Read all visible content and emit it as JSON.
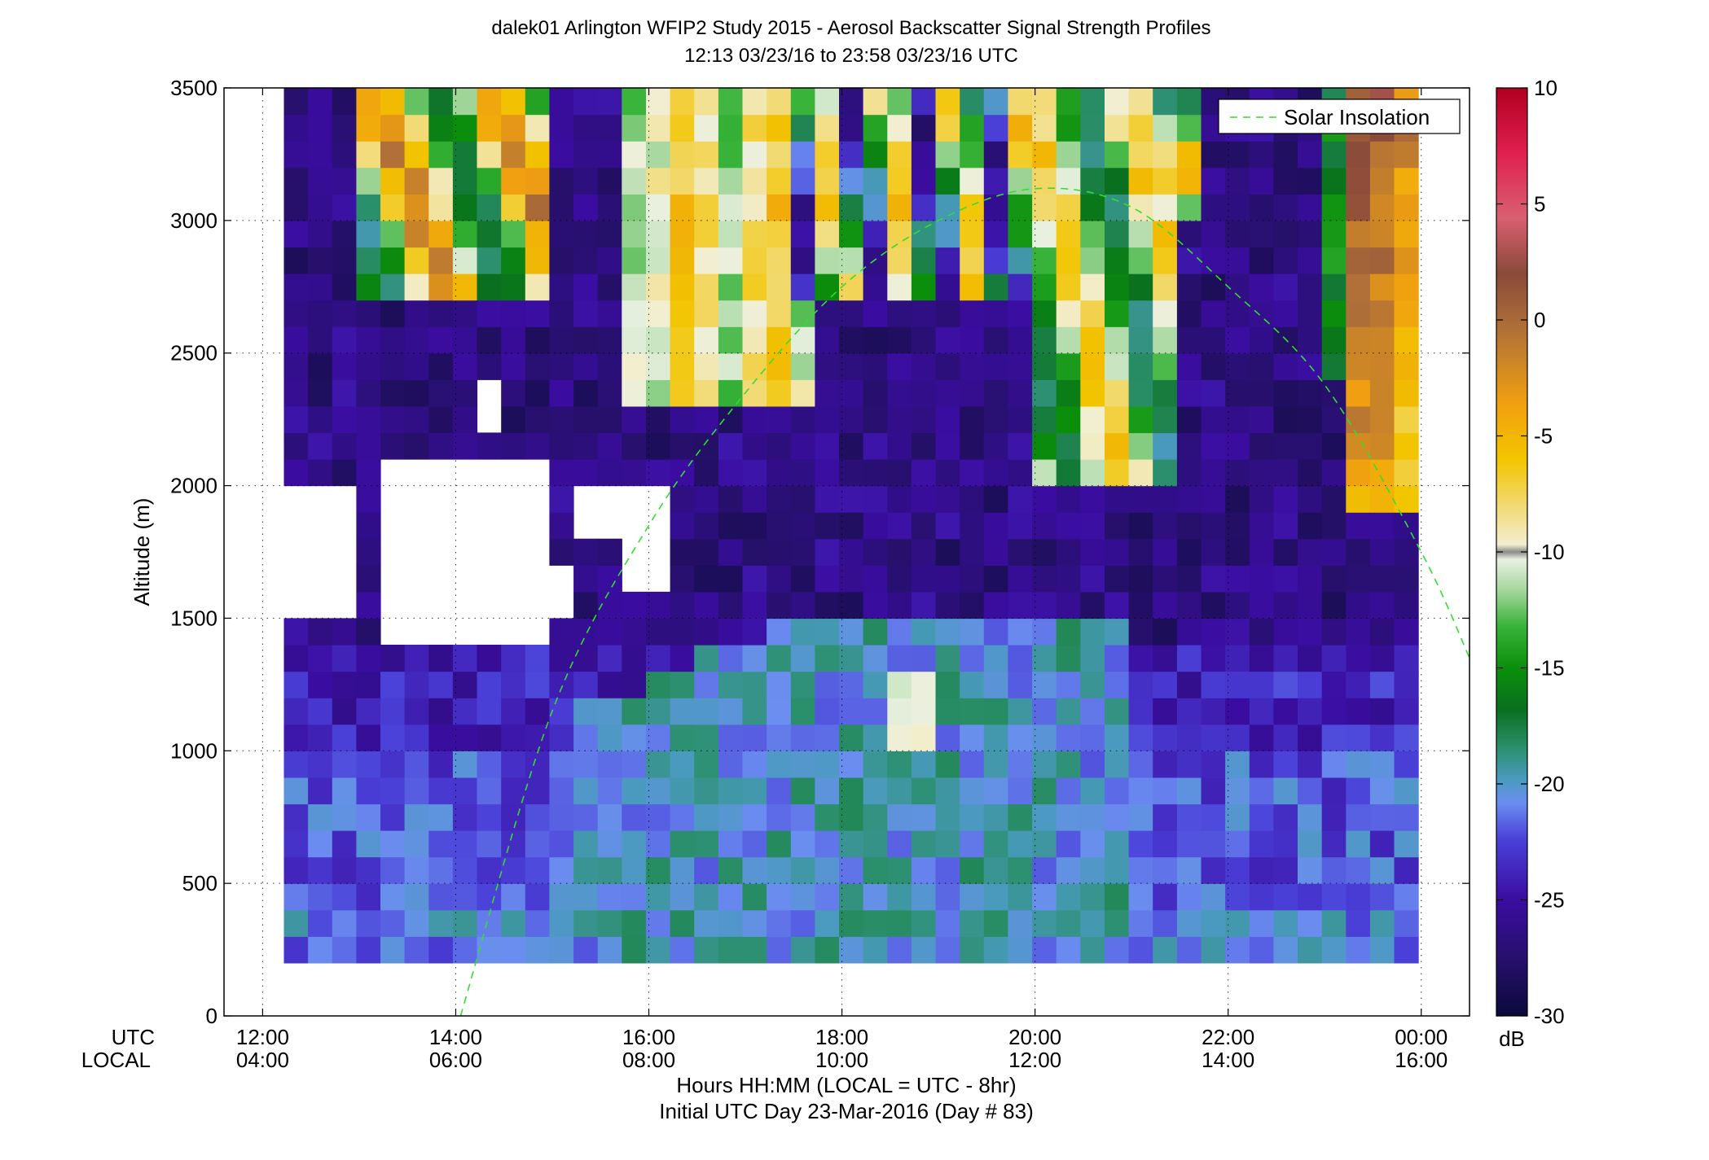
{
  "title_line1": "dalek01 Arlington WFIP2 Study 2015 - Aerosol Backscatter Signal Strength Profiles",
  "title_line2": "12:13 03/23/16 to 23:58 03/23/16  UTC",
  "ylabel": "Altitude (m)",
  "utc_row_label": "UTC",
  "local_row_label": "LOCAL",
  "xlabel_line1": "Hours HH:MM  (LOCAL = UTC - 8hr)",
  "xlabel_line2": "Initial UTC Day 23-Mar-2016 (Day # 83)",
  "colorbar_unit": "dB",
  "legend_label": "Solar Insolation",
  "chart_data": {
    "type": "heatmap",
    "title": "dalek01 Arlington WFIP2 Study 2015 - Aerosol Backscatter Signal Strength Profiles",
    "subtitle": "12:13 03/23/16 to 23:58 03/23/16  UTC",
    "x_utc_ticks": [
      "12:00",
      "14:00",
      "16:00",
      "18:00",
      "20:00",
      "22:00",
      "00:00"
    ],
    "x_local_ticks": [
      "04:00",
      "06:00",
      "08:00",
      "10:00",
      "12:00",
      "14:00",
      "16:00"
    ],
    "x_tick_hours": [
      12,
      14,
      16,
      18,
      20,
      22,
      24
    ],
    "xlim_hours_utc": [
      11.6,
      24.5
    ],
    "data_time_range_hours_utc": [
      12.22,
      23.97
    ],
    "ylim": [
      0,
      3500
    ],
    "y_ticks": [
      0,
      500,
      1000,
      1500,
      2000,
      2500,
      3000,
      3500
    ],
    "grid": true,
    "time_step_hours": 0.25,
    "altitude_bin_m": 100,
    "lowest_gate_m": 200,
    "colorbar": {
      "label": "dB",
      "range": [
        -30,
        10
      ],
      "ticks": [
        -30,
        -25,
        -20,
        -15,
        -10,
        -5,
        0,
        5,
        10
      ]
    },
    "legend": {
      "entries": [
        "Solar Insolation"
      ],
      "placement": "top-right"
    },
    "solar_insolation_curve": [
      {
        "hour": 14.05,
        "altitude": 0
      },
      {
        "hour": 15.0,
        "altitude": 1150
      },
      {
        "hour": 16.0,
        "altitude": 1850
      },
      {
        "hour": 17.0,
        "altitude": 2350
      },
      {
        "hour": 18.0,
        "altitude": 2750
      },
      {
        "hour": 19.0,
        "altitude": 3000
      },
      {
        "hour": 20.0,
        "altitude": 3120
      },
      {
        "hour": 21.0,
        "altitude": 3050
      },
      {
        "hour": 22.0,
        "altitude": 2750
      },
      {
        "hour": 23.0,
        "altitude": 2380
      },
      {
        "hour": 24.0,
        "altitude": 1750
      },
      {
        "hour": 24.5,
        "altitude": 1350
      }
    ],
    "value_profiles_db": [
      {
        "label": "12:15-13:30",
        "altitude": [
          300,
          600,
          900,
          1200,
          1500,
          2000,
          2500,
          3000
        ],
        "values": [
          -22,
          -19,
          -22,
          -26,
          -27,
          -28,
          -28,
          -27
        ]
      },
      {
        "label": "13:30-15:30",
        "altitude": [
          300,
          600,
          900,
          1200,
          1500,
          2000,
          2500,
          3000
        ],
        "values": [
          -22,
          -23,
          -23,
          -25,
          -27,
          -27,
          -27,
          -16
        ]
      },
      {
        "label": "15:30-17:30",
        "altitude": [
          300,
          600,
          900,
          1200,
          1500,
          2000,
          2500,
          3000
        ],
        "values": [
          -21,
          -19,
          -20,
          -25,
          -27,
          -26,
          -12,
          -8
        ]
      },
      {
        "label": "17:30-19:30",
        "altitude": [
          300,
          600,
          900,
          1200,
          1500,
          2000,
          2500,
          3000
        ],
        "values": [
          -21,
          -19,
          -19,
          -22,
          -25,
          -26,
          -24,
          -16
        ]
      },
      {
        "label": "19:30-21:30",
        "altitude": [
          300,
          600,
          900,
          1200,
          1500,
          2000,
          2500,
          3000
        ],
        "values": [
          -22,
          -20,
          -21,
          -23,
          -26,
          -18,
          -12,
          -10
        ]
      },
      {
        "label": "21:30-23:15",
        "altitude": [
          300,
          600,
          900,
          1200,
          1500,
          2000,
          2500,
          3000
        ],
        "values": [
          -23,
          -22,
          -23,
          -25,
          -27,
          -23,
          -24,
          -27
        ]
      },
      {
        "label": "23:15-24:00",
        "altitude": [
          300,
          600,
          900,
          1200,
          1500,
          2000,
          2500,
          3000
        ],
        "values": [
          -25,
          -24,
          -25,
          -26,
          -27,
          -10,
          -6,
          -3
        ]
      }
    ]
  }
}
